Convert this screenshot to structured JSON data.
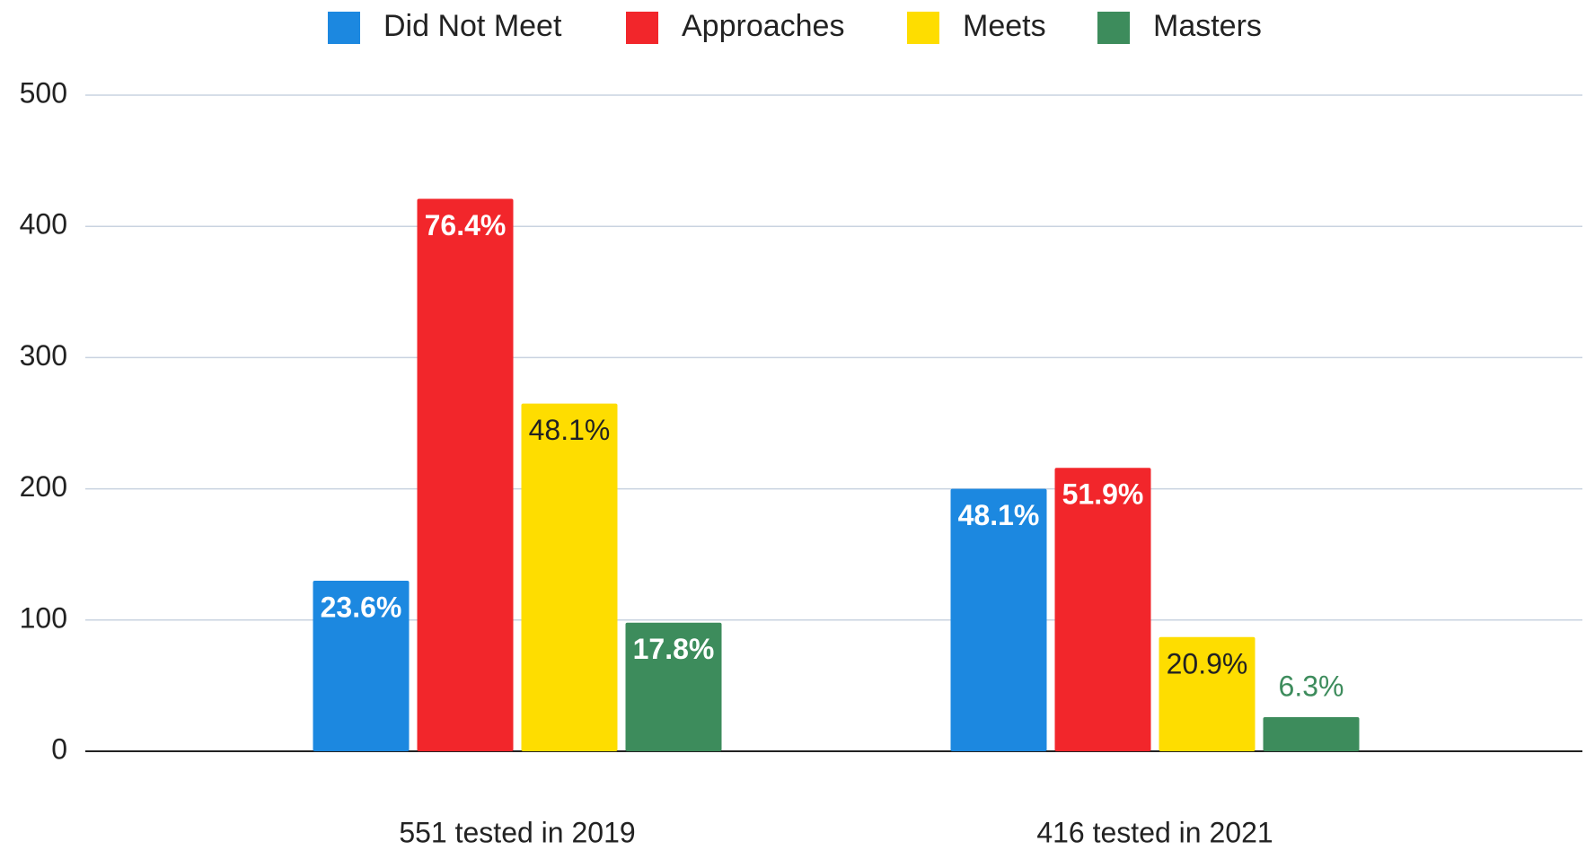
{
  "chart_data": {
    "type": "bar",
    "categories": [
      "551 tested in 2019",
      "416 tested in 2021"
    ],
    "series": [
      {
        "name": "Did Not Meet",
        "color": "#1c88e0",
        "values": [
          130,
          200
        ],
        "value_labels": [
          "23.6%",
          "48.1%"
        ]
      },
      {
        "name": "Approaches",
        "color": "#f2262b",
        "values": [
          421,
          216
        ],
        "value_labels": [
          "76.4%",
          "51.9%"
        ]
      },
      {
        "name": "Meets",
        "color": "#fedd00",
        "values": [
          265,
          87
        ],
        "value_labels": [
          "48.1%",
          "20.9%"
        ]
      },
      {
        "name": "Masters",
        "color": "#3d8c5c",
        "values": [
          98,
          26
        ],
        "value_labels": [
          "17.8%",
          "6.3%"
        ]
      }
    ],
    "ylim": [
      0,
      500
    ],
    "yticks": [
      0,
      100,
      200,
      300,
      400,
      500
    ],
    "grid": true,
    "legend": "top"
  }
}
